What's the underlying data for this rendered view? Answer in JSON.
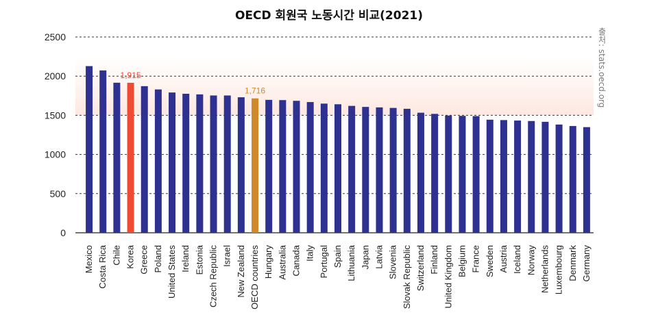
{
  "chart_data": {
    "type": "bar",
    "title": "OECD 회원국 노동시간 비교(2021)",
    "source": "출처: stats.oecd.org",
    "xlabel": "",
    "ylabel": "",
    "ylim": [
      0,
      2500
    ],
    "yticks": [
      0,
      500,
      1000,
      1500,
      2000,
      2500
    ],
    "ytick_labels": [
      "0",
      "500",
      "1000",
      "1500",
      "2000",
      "2500"
    ],
    "grid": true,
    "categories": [
      "Mexico",
      "Costa Rica",
      "Chile",
      "Korea",
      "Greece",
      "Poland",
      "United States",
      "Ireland",
      "Estonia",
      "Czech Republic",
      "Israel",
      "New Zealand",
      "OECD countries",
      "Hungary",
      "Australia",
      "Canada",
      "Italy",
      "Portugal",
      "Spain",
      "Lithuania",
      "Japan",
      "Latvia",
      "Slovenia",
      "Slovak Republic",
      "Switzerland",
      "Finland",
      "United Kingdom",
      "Belgium",
      "France",
      "Sweden",
      "Austria",
      "Iceland",
      "Norway",
      "Netherlands",
      "Luxembourg",
      "Denmark",
      "Germany"
    ],
    "values": [
      2128,
      2073,
      1916,
      1915,
      1872,
      1830,
      1791,
      1775,
      1767,
      1753,
      1753,
      1730,
      1716,
      1697,
      1694,
      1685,
      1669,
      1649,
      1641,
      1620,
      1607,
      1601,
      1594,
      1583,
      1533,
      1518,
      1497,
      1493,
      1490,
      1444,
      1439,
      1433,
      1427,
      1417,
      1382,
      1363,
      1349
    ],
    "highlights": [
      {
        "category": "Korea",
        "label": "1,915",
        "color": "#ef4a33"
      },
      {
        "category": "OECD countries",
        "label": "1,716",
        "color": "#d0892a"
      }
    ],
    "colors": {
      "bar": "#2e318f",
      "grid": "#333333",
      "band_top": "#ffffff",
      "band_bottom": "#fde8e0",
      "baseline": "#222222"
    }
  }
}
